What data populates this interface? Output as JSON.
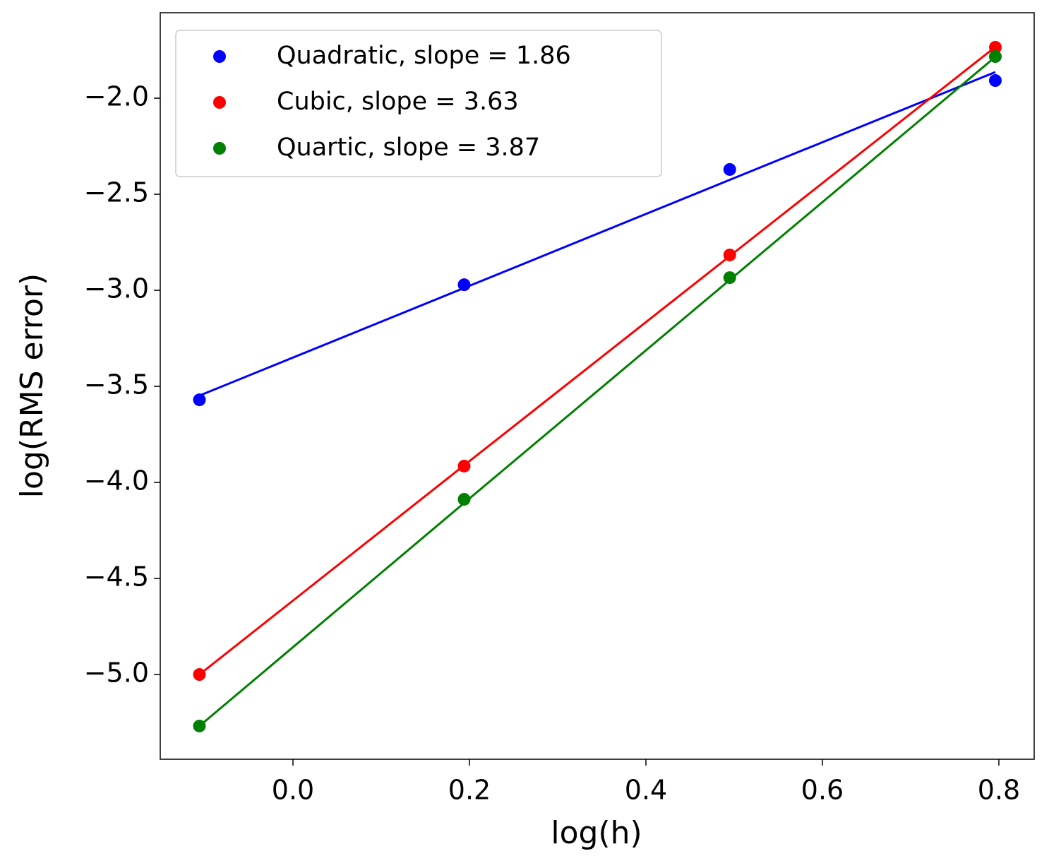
{
  "chart_data": {
    "type": "scatter",
    "xlabel": "log(h)",
    "ylabel": "log(RMS error)",
    "x": [
      -0.106,
      0.194,
      0.495,
      0.796
    ],
    "series": [
      {
        "name": "Quadratic, slope = 1.86",
        "color": "#0000ff",
        "values": [
          -3.57,
          -2.971,
          -2.371,
          -1.908
        ],
        "fit_values": [
          -3.548,
          -2.988,
          -2.425,
          -1.864
        ]
      },
      {
        "name": "Cubic, slope = 3.63",
        "color": "#ff0000",
        "values": [
          -5.0,
          -3.915,
          -2.816,
          -1.735
        ],
        "fit_values": [
          -5.0,
          -3.911,
          -2.822,
          -1.733
        ]
      },
      {
        "name": "Quartic, slope = 3.87",
        "color": "#008000",
        "values": [
          -5.268,
          -4.088,
          -2.934,
          -1.783
        ],
        "fit_values": [
          -5.268,
          -4.107,
          -2.946,
          -1.785
        ]
      }
    ],
    "xlim": [
      -0.1504,
      0.84
    ],
    "ylim": [
      -5.441,
      -1.555
    ],
    "xticks": [
      {
        "value": 0,
        "label": "0.0"
      },
      0.2,
      0.4,
      0.6,
      0.8
    ],
    "yticks": [
      {
        "value": -2.0,
        "label": "−2.0"
      },
      {
        "value": -2.5,
        "label": "−2.5"
      },
      {
        "value": -3.0,
        "label": "−3.0"
      },
      {
        "value": -3.5,
        "label": "−3.5"
      },
      {
        "value": -4.0,
        "label": "−4.0"
      },
      {
        "value": -4.5,
        "label": "−4.5"
      },
      {
        "value": -5.0,
        "label": "−5.0"
      }
    ],
    "legend": "upper left"
  }
}
